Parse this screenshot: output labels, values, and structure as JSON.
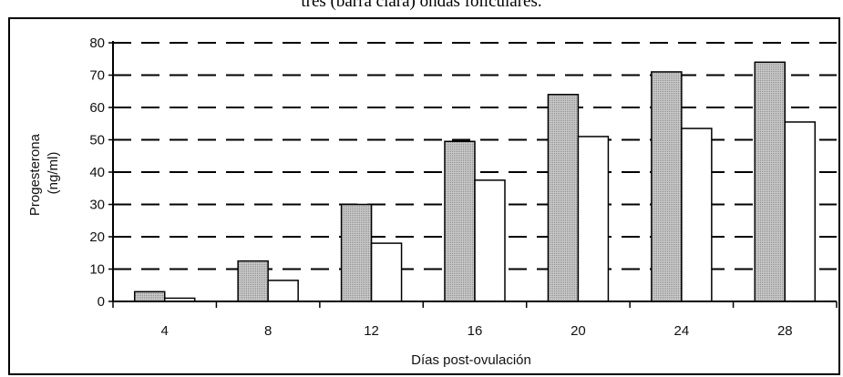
{
  "caption": "tres (barra clara) ondas foliculares.",
  "chart_data": {
    "type": "bar",
    "categories": [
      "4",
      "8",
      "12",
      "16",
      "20",
      "24",
      "28"
    ],
    "series": [
      {
        "values": [
          3,
          12.5,
          30,
          49.5,
          64,
          71,
          74
        ]
      },
      {
        "values": [
          1,
          6.5,
          18,
          37.5,
          51,
          53.5,
          55.5
        ]
      }
    ],
    "xlabel": "Días post-ovulación",
    "ylabel_lines": [
      "Progesterona",
      "(ng/ml)"
    ],
    "ylim": [
      0,
      80
    ],
    "yticks": [
      0,
      10,
      20,
      30,
      40,
      50,
      60,
      70,
      80
    ],
    "grid": true,
    "grid_style": "dashed",
    "legend": "none",
    "colors": {
      "series_dark_fill": "#b4b4b4",
      "series_light_fill": "#ffffff",
      "bar_stroke": "#000000",
      "grid": "#000000"
    }
  }
}
